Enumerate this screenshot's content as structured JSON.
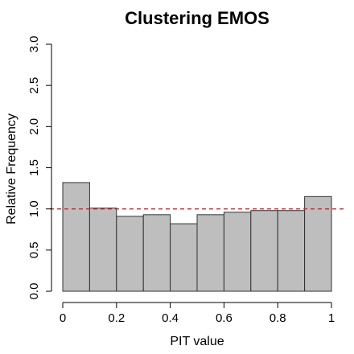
{
  "chart_data": {
    "type": "bar",
    "title": "Clustering EMOS",
    "xlabel": "PIT value",
    "ylabel": "Relative Frequency",
    "xlim": [
      0,
      1
    ],
    "ylim": [
      0,
      3
    ],
    "bin_width": 0.1,
    "bin_starts": [
      0.0,
      0.1,
      0.2,
      0.3,
      0.4,
      0.5,
      0.6,
      0.7,
      0.8,
      0.9
    ],
    "values": [
      1.32,
      1.01,
      0.91,
      0.93,
      0.82,
      0.93,
      0.96,
      0.98,
      0.98,
      1.15
    ],
    "x_ticks": [
      {
        "value": 0,
        "label": "0"
      },
      {
        "value": 0.2,
        "label": "0.2"
      },
      {
        "value": 0.4,
        "label": "0.4"
      },
      {
        "value": 0.6,
        "label": "0.6"
      },
      {
        "value": 0.8,
        "label": "0.8"
      },
      {
        "value": 1,
        "label": "1"
      }
    ],
    "y_ticks": [
      {
        "value": 0,
        "label": "0.0"
      },
      {
        "value": 0.5,
        "label": "0.5"
      },
      {
        "value": 1,
        "label": "1.0"
      },
      {
        "value": 1.5,
        "label": "1.5"
      },
      {
        "value": 2,
        "label": "2.0"
      },
      {
        "value": 2.5,
        "label": "2.5"
      },
      {
        "value": 3,
        "label": "3.0"
      }
    ],
    "reference_line": {
      "y": 1.0,
      "style": "dashed",
      "color": "#e41a1c"
    },
    "bar_color": "#bebebe",
    "grid": false,
    "legend": "none"
  }
}
